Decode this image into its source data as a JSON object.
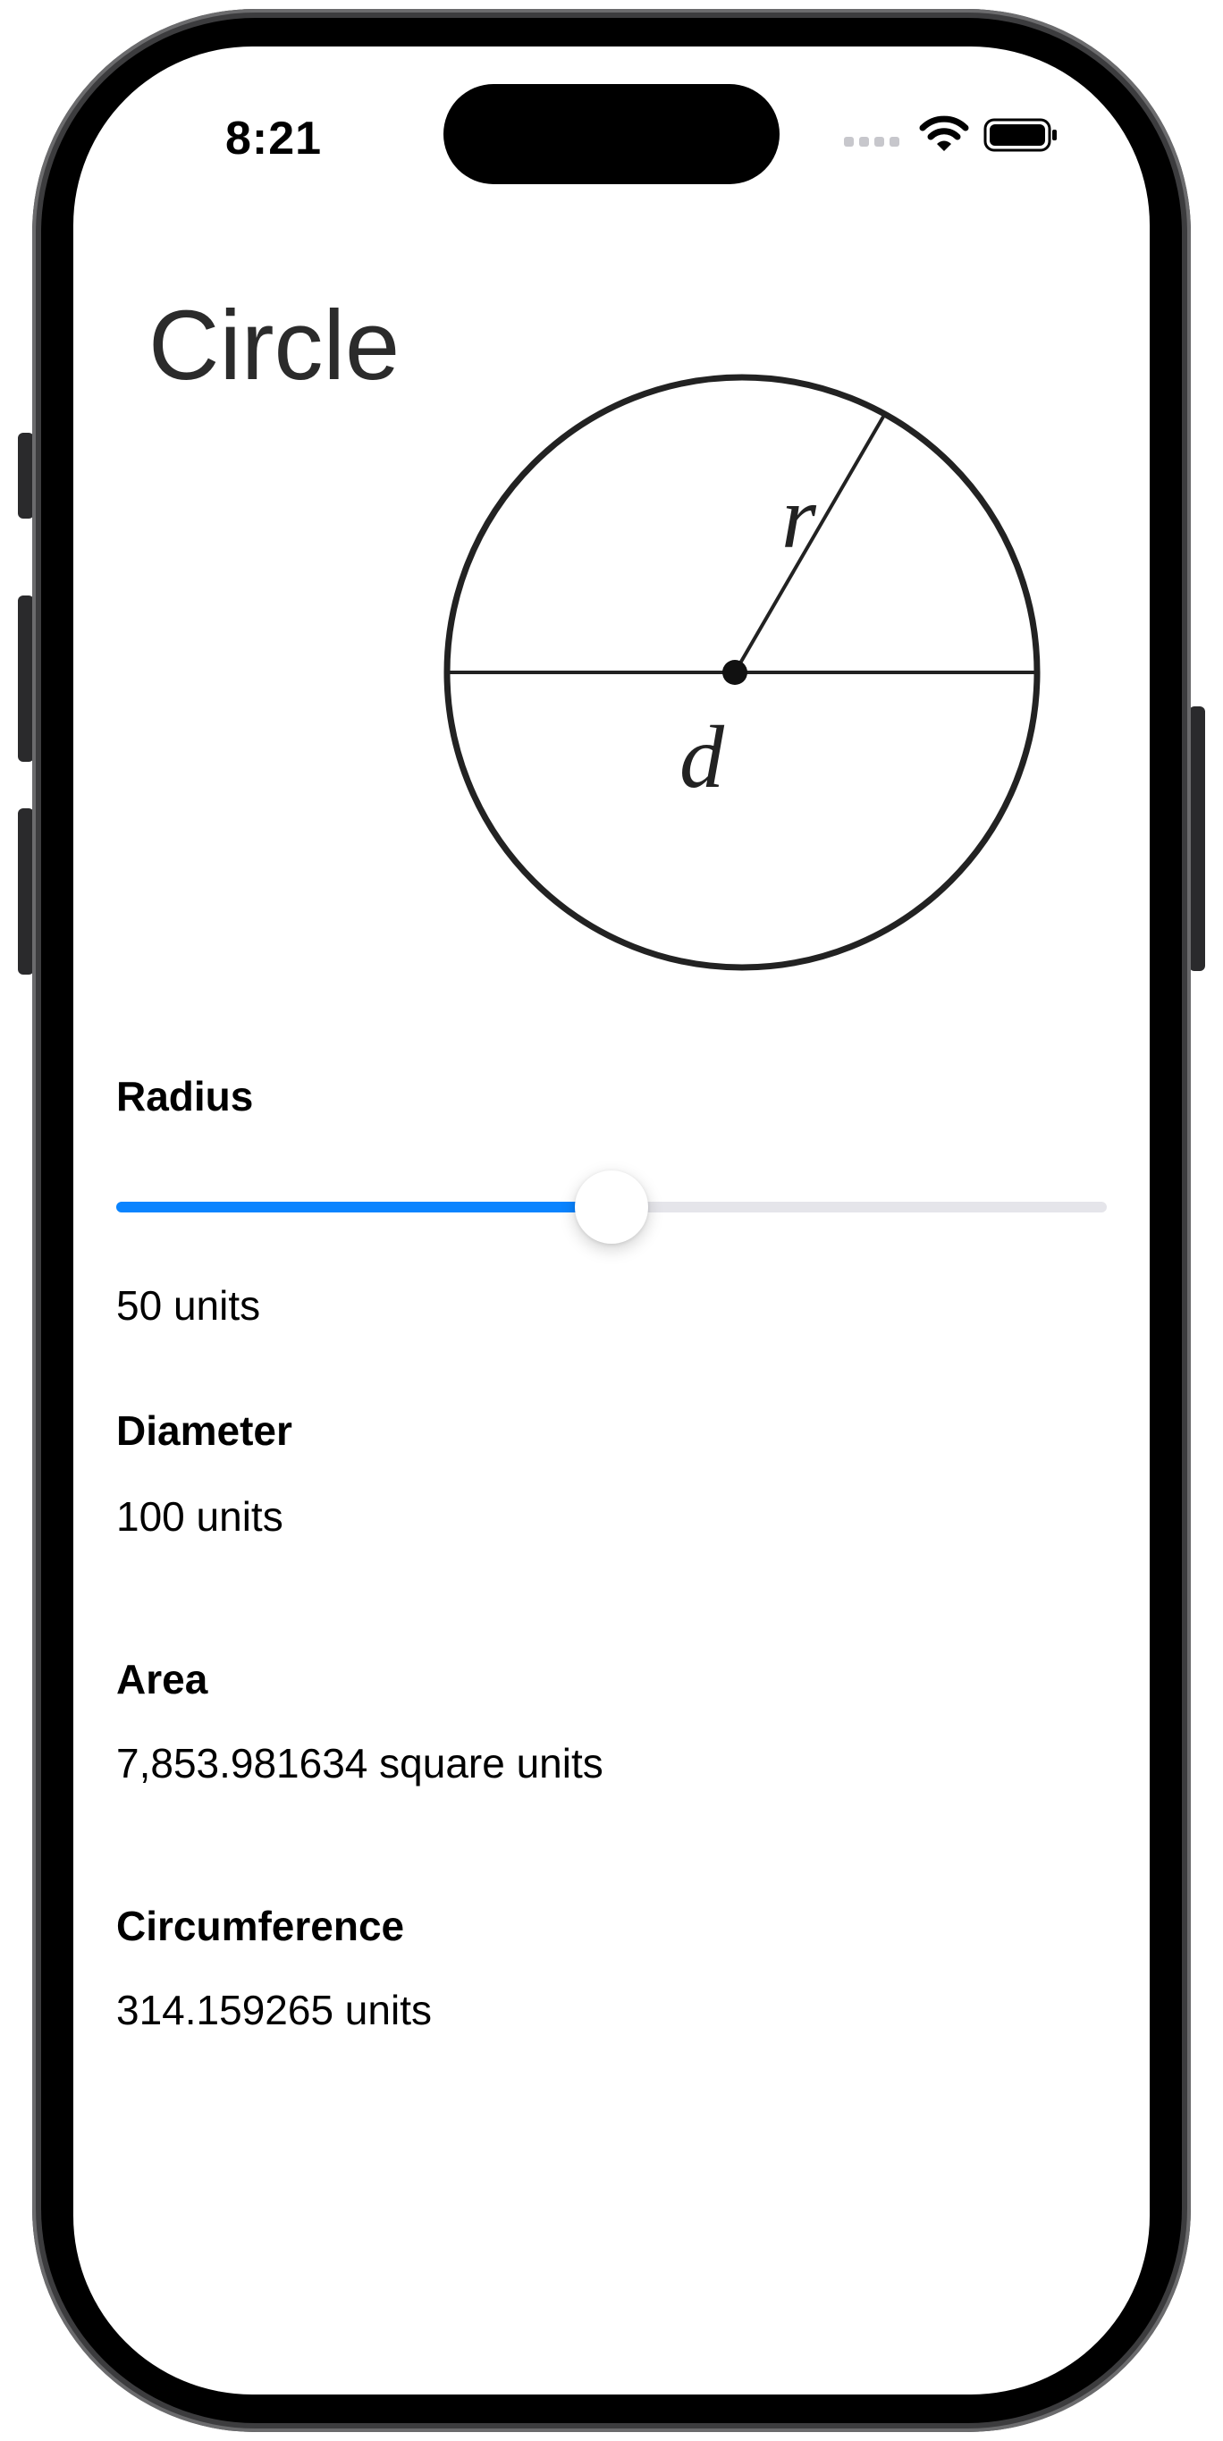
{
  "status_bar": {
    "time": "8:21",
    "icons": [
      "cellular-dots-icon",
      "wifi-icon",
      "battery-icon"
    ]
  },
  "title": "Circle",
  "diagram": {
    "radius_symbol": "r",
    "diameter_symbol": "d"
  },
  "radius": {
    "label": "Radius",
    "value_text": "50 units",
    "slider_fraction": 0.5
  },
  "diameter": {
    "label": "Diameter",
    "value_text": "100 units"
  },
  "area": {
    "label": "Area",
    "value_text": "7,853.981634 square units"
  },
  "circumference": {
    "label": "Circumference",
    "value_text": "314.159265 units"
  },
  "colors": {
    "accent": "#0a84ff",
    "track": "#e5e5ea",
    "text": "#000000"
  }
}
